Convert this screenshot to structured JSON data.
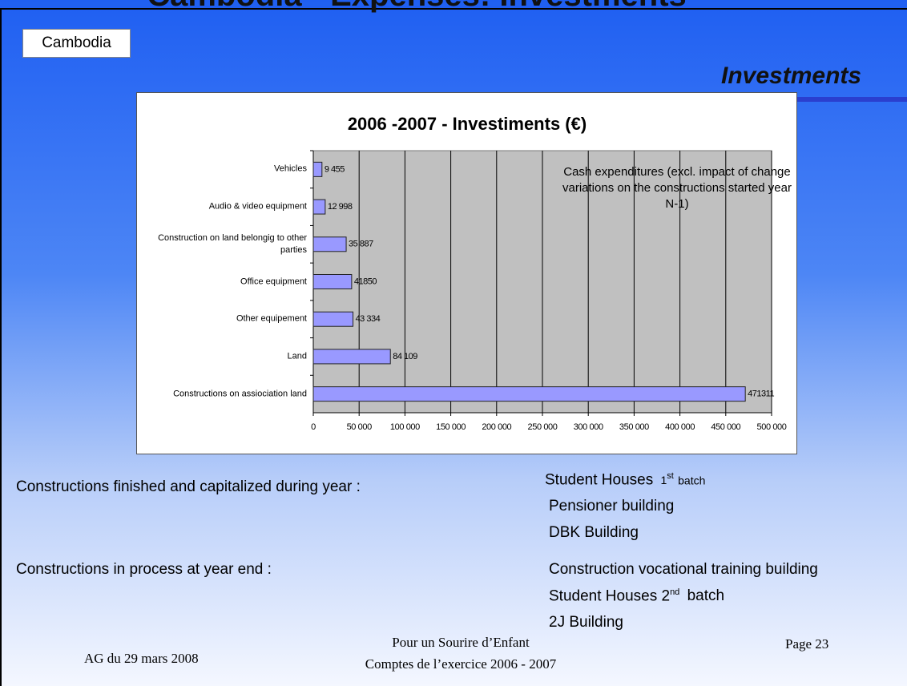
{
  "slide_title": "Cambodia - Expenses: Investments",
  "tag": "Cambodia",
  "section": "Investments",
  "chart_data": {
    "type": "bar",
    "orientation": "horizontal",
    "title": "2006 -2007 -  Investiments (€)",
    "categories": [
      "Vehicles",
      "Audio & video equipment",
      "Construction on land belongig to other parties",
      "Office equipment",
      "Other equipement",
      "Land",
      "Constructions on assiociation land"
    ],
    "values": [
      9455,
      12998,
      35887,
      41850,
      43334,
      84109,
      471311
    ],
    "value_labels": [
      "9 455",
      "12 998",
      "35 887",
      "41850",
      "43 334",
      "84 109",
      "471311"
    ],
    "color": "#9999ff",
    "xlim": [
      0,
      500000
    ],
    "xticks": [
      0,
      {
        "value": 50000,
        "label": "50 000"
      },
      {
        "value": 100000,
        "label": "100 000"
      },
      {
        "value": 150000,
        "label": "150 000"
      },
      {
        "value": 200000,
        "label": "200 000"
      },
      {
        "value": 250000,
        "label": "250 000"
      },
      {
        "value": 300000,
        "label": "300 000"
      },
      {
        "value": 350000,
        "label": "350 000"
      },
      {
        "value": 400000,
        "label": "400 000"
      },
      {
        "value": 450000,
        "label": "450 000"
      },
      {
        "value": 500000,
        "label": "500 000"
      }
    ],
    "grid": true,
    "annotation": "Cash expenditures (excl. impact of change variations on the constructions started year N-1)"
  },
  "finished": {
    "label": "Constructions finished and capitalized during year :",
    "items": [
      {
        "main": "Student Houses",
        "num": "1",
        "sup": "st",
        "rest": "batch"
      },
      {
        "main": "Pensioner building"
      },
      {
        "main": "DBK Building"
      }
    ]
  },
  "in_process": {
    "label": "Constructions  in process at year end :",
    "items": [
      {
        "main": "Construction vocational training building"
      },
      {
        "main": "Student Houses",
        "num": "2",
        "sup": "nd",
        "rest": "batch"
      },
      {
        "main": "2J Building"
      }
    ]
  },
  "footer": {
    "left": "AG du 29 mars 2008",
    "center": [
      "Pour un Sourire d’Enfant",
      "Comptes de l’exercice 2006 - 2007"
    ],
    "right": "Page 23"
  }
}
